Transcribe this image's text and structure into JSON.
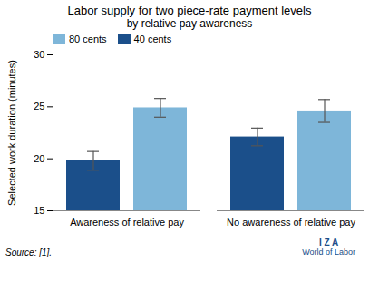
{
  "chart_data": {
    "type": "bar",
    "title": "Labor supply for two piece-rate payment levels",
    "subtitle": "by relative pay awareness",
    "ylabel": "Selected work duration (minutes)",
    "categories": [
      "Awareness of relative pay",
      "No awareness of relative pay"
    ],
    "series": [
      {
        "name": "80 cents",
        "color": "#7EB6D9",
        "values": [
          24.9,
          24.6
        ],
        "errors": [
          0.9,
          1.1
        ]
      },
      {
        "name": "40 cents",
        "color": "#1B4F8A",
        "values": [
          19.8,
          22.1
        ],
        "errors": [
          0.9,
          0.85
        ]
      }
    ],
    "ylim": [
      15,
      30
    ],
    "yticks": [
      15,
      20,
      25,
      30
    ],
    "grid": false,
    "legend": "upper left",
    "annotations": [
      "Source: [1].",
      "I Z A",
      "World of Labor"
    ]
  }
}
